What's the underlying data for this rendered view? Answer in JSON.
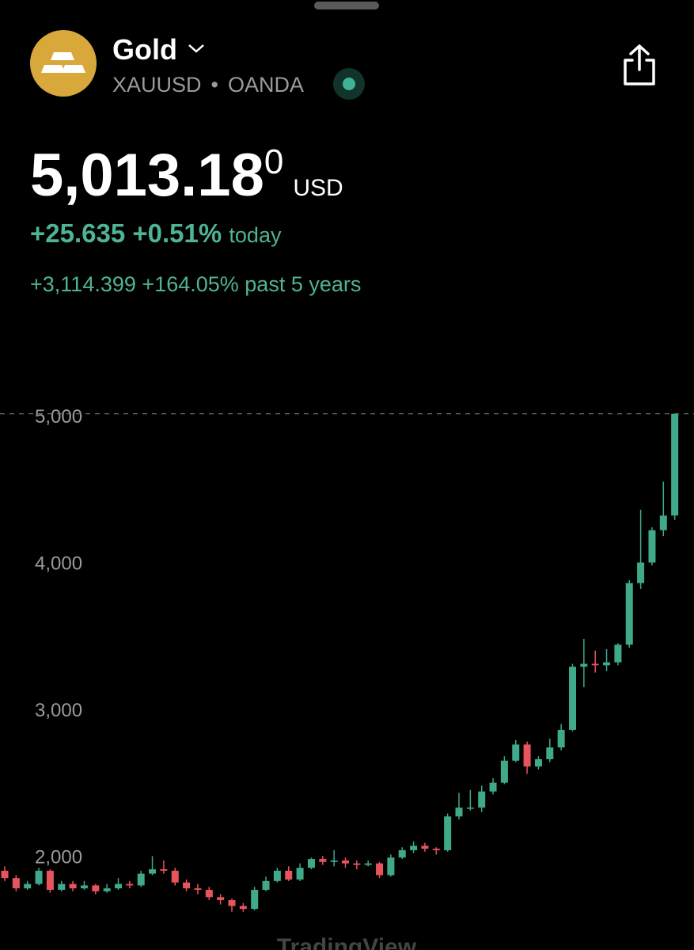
{
  "header": {
    "title": "Gold",
    "symbol": "XAUUSD",
    "exchange": "OANDA",
    "price": "5,013.18",
    "price_sup": "0",
    "currency": "USD",
    "change_today": "+25.635",
    "change_today_pct": "+0.51%",
    "today_label": "today",
    "change_5y": "+3,114.399",
    "change_5y_pct": "+164.05%",
    "period_label": "past 5 years",
    "watermark": "TradingView"
  },
  "chart_data": {
    "type": "candlestick",
    "up_color": "#3fa98a",
    "down_color": "#e8545e",
    "open": [
      1900,
      1850,
      1780,
      1810,
      1900,
      1770,
      1810,
      1780,
      1800,
      1760,
      1780,
      1810,
      1800,
      1880,
      1910,
      1900,
      1820,
      1780,
      1770,
      1720,
      1700,
      1660,
      1640,
      1770,
      1830,
      1900,
      1840,
      1920,
      1980,
      1960,
      1970,
      1950,
      1940,
      1950,
      1870,
      1990,
      2040,
      2070,
      2050,
      2040,
      2270,
      2330,
      2330,
      2440,
      2500,
      2650,
      2760,
      2610,
      2660,
      2740,
      2860,
      3290,
      3310,
      3300,
      3320,
      3440,
      3860,
      4000,
      4220,
      4320
    ],
    "high": [
      1930,
      1870,
      1830,
      1920,
      1910,
      1830,
      1830,
      1830,
      1810,
      1810,
      1850,
      1830,
      1900,
      2000,
      1970,
      1920,
      1840,
      1810,
      1790,
      1740,
      1710,
      1680,
      1790,
      1860,
      1920,
      1930,
      1950,
      1990,
      2000,
      2040,
      1990,
      1970,
      1970,
      1960,
      2010,
      2060,
      2100,
      2090,
      2060,
      2290,
      2430,
      2450,
      2480,
      2530,
      2680,
      2790,
      2780,
      2680,
      2800,
      2900,
      3310,
      3480,
      3400,
      3410,
      3450,
      3880,
      4360,
      4240,
      4550,
      5013.18
    ],
    "low": [
      1830,
      1760,
      1770,
      1800,
      1750,
      1760,
      1760,
      1770,
      1740,
      1750,
      1770,
      1780,
      1790,
      1870,
      1880,
      1800,
      1760,
      1740,
      1700,
      1670,
      1620,
      1620,
      1630,
      1760,
      1820,
      1830,
      1830,
      1910,
      1940,
      1930,
      1920,
      1910,
      1930,
      1850,
      1860,
      1980,
      2020,
      2030,
      2010,
      2030,
      2250,
      2310,
      2300,
      2420,
      2490,
      2640,
      2560,
      2590,
      2640,
      2720,
      2850,
      3150,
      3250,
      3260,
      3300,
      3420,
      3820,
      3980,
      4180,
      4290
    ],
    "close": [
      1850,
      1780,
      1810,
      1900,
      1770,
      1810,
      1780,
      1800,
      1760,
      1780,
      1810,
      1800,
      1880,
      1910,
      1900,
      1820,
      1780,
      1770,
      1720,
      1700,
      1660,
      1640,
      1770,
      1830,
      1900,
      1840,
      1920,
      1980,
      1960,
      1970,
      1950,
      1940,
      1950,
      1870,
      1990,
      2040,
      2070,
      2050,
      2040,
      2270,
      2330,
      2330,
      2440,
      2500,
      2650,
      2760,
      2610,
      2660,
      2740,
      2860,
      3290,
      3310,
      3300,
      3320,
      3440,
      3860,
      4000,
      4220,
      4320,
      5013.18
    ],
    "ylim": [
      1360,
      5675
    ],
    "yticks": [
      {
        "value": 2000,
        "label": "2,000"
      },
      {
        "value": 3000,
        "label": "3,000"
      },
      {
        "value": 4000,
        "label": "4,000"
      },
      {
        "value": 5000,
        "label": "5,000"
      }
    ]
  }
}
